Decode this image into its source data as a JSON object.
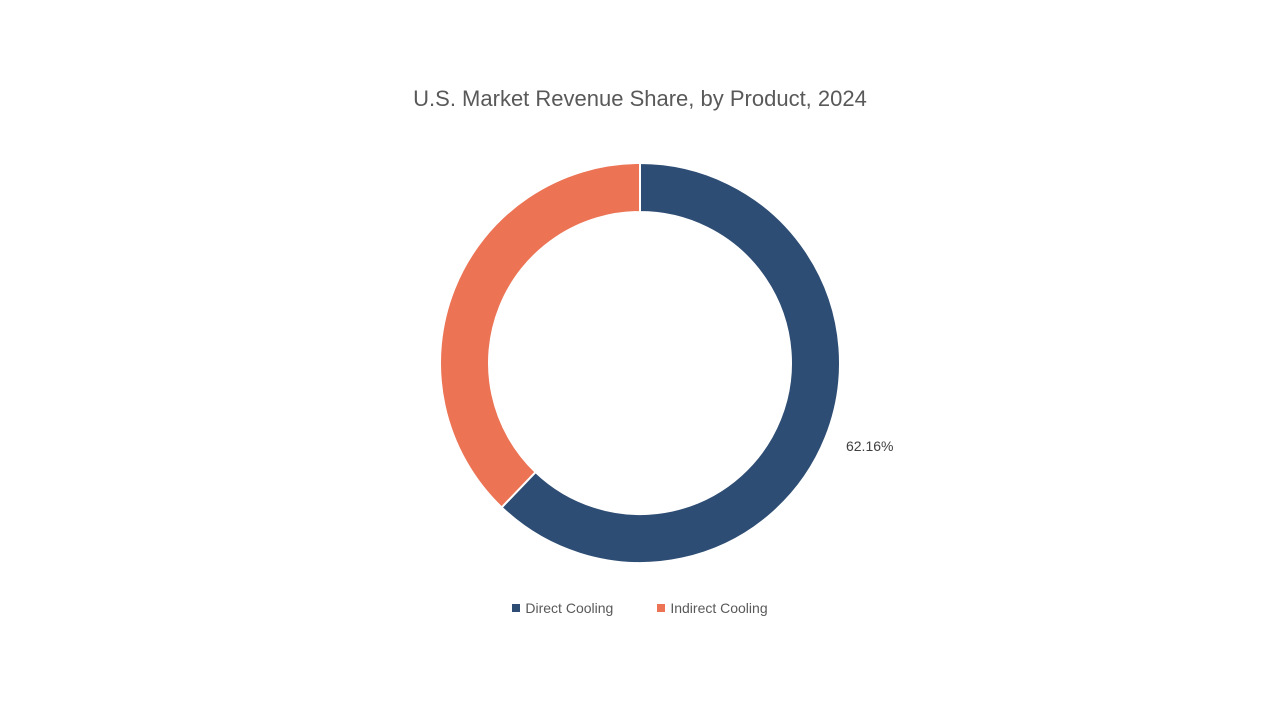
{
  "chart_data": {
    "type": "pie",
    "donut": true,
    "title": "U.S. Market Revenue Share, by Product, 2024",
    "categories": [
      "Direct Cooling",
      "Indirect Cooling"
    ],
    "values": [
      62.16,
      37.84
    ],
    "unit": "%",
    "colors": [
      "#2E4D74",
      "#EC7354"
    ],
    "data_labels": [
      "62.16%",
      null
    ],
    "legend_position": "bottom"
  }
}
